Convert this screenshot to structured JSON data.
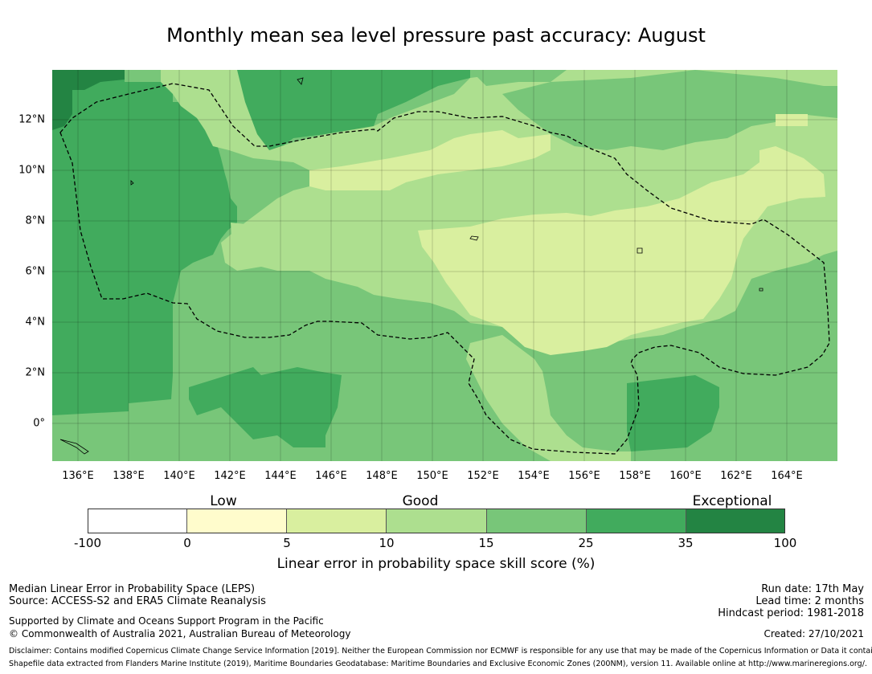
{
  "title": "Monthly mean sea level pressure past accuracy: August",
  "map": {
    "lat_ticks": [
      "12°N",
      "10°N",
      "8°N",
      "6°N",
      "4°N",
      "2°N",
      "0°"
    ],
    "lon_ticks": [
      "136°E",
      "138°E",
      "140°E",
      "142°E",
      "144°E",
      "146°E",
      "148°E",
      "150°E",
      "152°E",
      "154°E",
      "156°E",
      "158°E",
      "160°E",
      "162°E",
      "164°E"
    ]
  },
  "legend": {
    "category_labels": [
      "Low",
      "Good",
      "Exceptional"
    ],
    "tick_labels": [
      "-100",
      "0",
      "5",
      "10",
      "15",
      "25",
      "35",
      "100"
    ],
    "colors": [
      "#ffffff",
      "#fffccc",
      "#d9ef9f",
      "#addf8f",
      "#78c679",
      "#41ab5d",
      "#238443"
    ],
    "title": "Linear error in probability space skill score (%)"
  },
  "footer": {
    "left_line1": "Median Linear Error in Probability Space (LEPS)",
    "left_line2": "Source: ACCESS-S2 and ERA5 Climate Reanalysis",
    "left_line3": "Supported by Climate and Oceans Support Program in the Pacific",
    "left_line4": "© Commonwealth of Australia 2021, Australian Bureau of Meteorology",
    "run_date": "Run date: 17th May",
    "lead_time": "Lead time: 2 months",
    "hindcast": "Hindcast period: 1981-2018",
    "created": "Created: 27/10/2021",
    "disclaimer1": "Disclaimer: Contains modified Copernicus Climate Change Service Information [2019]. Neither the European Commission nor ECMWF is responsible for any use that may be made of the Copernicus Information or Data it contains.",
    "disclaimer2": "Shapefile data extracted from Flanders Marine Institute (2019), Maritime Boundaries Geodatabase: Maritime Boundaries and Exclusive Economic Zones (200NM), version 11. Available online at http://www.marineregions.org/."
  }
}
